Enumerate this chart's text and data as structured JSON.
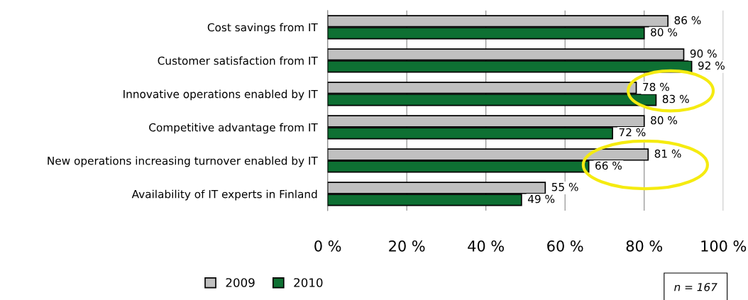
{
  "chart_data": {
    "type": "bar",
    "orientation": "horizontal",
    "categories": [
      "Cost savings from IT",
      "Customer satisfaction from IT",
      "Innovative operations enabled by IT",
      "Competitive advantage from IT",
      "New operations increasing turnover enabled by IT",
      "Availability of IT experts in Finland"
    ],
    "series": [
      {
        "name": "2009",
        "color": "#c0c0c0",
        "values": [
          86,
          90,
          78,
          80,
          81,
          55
        ],
        "value_labels": [
          "86 %",
          "90 %",
          "78 %",
          "80 %",
          "81 %",
          "55 %"
        ]
      },
      {
        "name": "2010",
        "color": "#0e7033",
        "values": [
          80,
          92,
          83,
          72,
          66,
          49
        ],
        "value_labels": [
          "80 %",
          "92 %",
          "83 %",
          "72 %",
          "66 %",
          "49 %"
        ]
      }
    ],
    "xlim": [
      0,
      100
    ],
    "xticks": [
      {
        "value": 0,
        "label": "0 %"
      },
      {
        "value": 20,
        "label": "20 %"
      },
      {
        "value": 40,
        "label": "40 %"
      },
      {
        "value": 60,
        "label": "60 %"
      },
      {
        "value": 80,
        "label": "80 %"
      },
      {
        "value": 100,
        "label": "100 %"
      }
    ],
    "grid": "x",
    "legend": "bottom left",
    "annotations": [
      "n = 167"
    ]
  }
}
